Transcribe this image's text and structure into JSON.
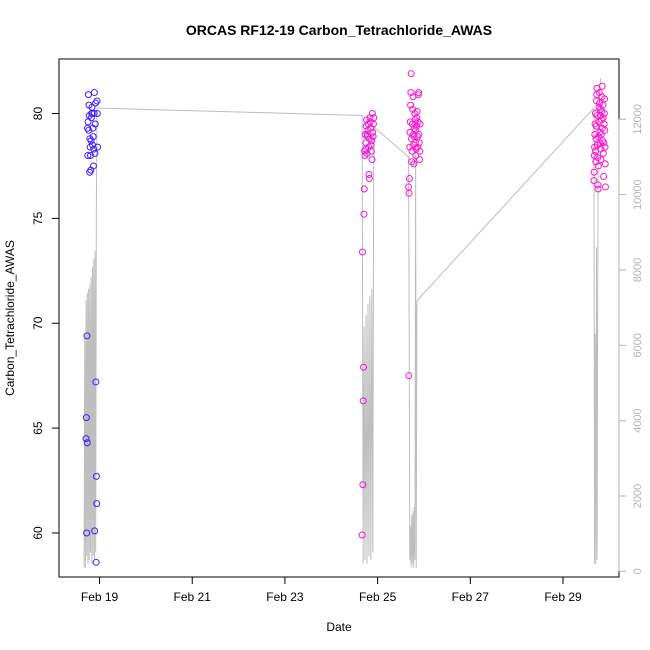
{
  "chart_data": {
    "type": "scatter",
    "title": "ORCAS RF12-19 Carbon_Tetrachloride_AWAS",
    "xlabel": "Date",
    "ylabel": "Carbon_Tetrachloride_AWAS",
    "x_ticks": [
      "Feb 19",
      "Feb 21",
      "Feb 23",
      "Feb 25",
      "Feb 27",
      "Feb 29"
    ],
    "xlim": [
      "2016-02-18T03:00",
      "2016-03-01T05:00"
    ],
    "ylim": [
      57.9,
      82.6
    ],
    "y_ticks": [
      60,
      65,
      70,
      75,
      80
    ],
    "y2lim": [
      -150,
      13600
    ],
    "y2_ticks": [
      0,
      2000,
      4000,
      6000,
      8000,
      10000,
      12000
    ],
    "grid": false,
    "colors": {
      "axis": "#000000",
      "secondary_axis": "#b3b3b3",
      "altitude_line": "#bebebe",
      "point_early": "#3d1eff",
      "point_late": "#ff14d2"
    },
    "series": [
      {
        "role": "points",
        "flights": [
          {
            "start": "2016-02-18T17:00",
            "end": "2016-02-18T23:00",
            "values": [
              64.5,
              65.5,
              60.0,
              69.4,
              64.3,
              79.3,
              78.0,
              79.6,
              80.9,
              79.2,
              80.4,
              79.9,
              77.2,
              78.8,
              78.4,
              78.0,
              77.3,
              78.7,
              79.8,
              80.0,
              80.3,
              80.0,
              78.5,
              79.3,
              78.9,
              77.5,
              78.3,
              80.0,
              81.0,
              60.1,
              78.1,
              79.5,
              80.5,
              67.2,
              58.6,
              62.7,
              61.4,
              80.6,
              80.0,
              78.4
            ]
          },
          {
            "start": "2016-02-24T16:00",
            "end": "2016-02-24T22:00",
            "values": [
              59.9,
              73.4,
              62.3,
              66.3,
              67.9,
              75.2,
              76.4,
              78.2,
              78.0,
              79.0,
              78.3,
              78.6,
              79.4,
              79.7,
              78.1,
              79.0,
              78.9,
              79.2,
              79.5,
              78.4,
              77.1,
              76.9,
              78.8,
              79.8,
              79.6,
              79.3,
              78.5,
              78.2,
              78.7,
              77.8,
              80.0,
              79.1,
              78.9,
              79.5,
              79.8
            ]
          },
          {
            "start": "2016-02-25T16:00",
            "end": "2016-02-25T22:00",
            "values": [
              76.5,
              67.5,
              76.2,
              76.9,
              78.4,
              79.1,
              79.6,
              80.4,
              81.0,
              81.9,
              78.8,
              77.7,
              78.2,
              79.5,
              80.2,
              80.8,
              79.0,
              78.5,
              77.6,
              78.9,
              79.3,
              80.0,
              79.7,
              79.2,
              78.6,
              78.0,
              78.3,
              79.4,
              79.8,
              80.1,
              78.4,
              78.9,
              79.6,
              80.9,
              81.0,
              79.0,
              78.6,
              77.8,
              78.2,
              79.5
            ]
          },
          {
            "start": "2016-02-29T16:00",
            "end": "2016-02-29T22:00",
            "values": [
              76.8,
              77.2,
              78.0,
              78.4,
              79.0,
              79.5,
              80.0,
              78.2,
              77.7,
              78.8,
              79.4,
              80.6,
              80.9,
              81.2,
              79.9,
              78.5,
              77.9,
              76.6,
              76.4,
              77.5,
              78.9,
              79.6,
              80.3,
              81.0,
              80.5,
              79.1,
              78.6,
              79.9,
              80.2,
              78.3,
              77.8,
              79.0,
              79.7,
              80.1,
              80.8,
              81.3,
              79.3,
              78.7,
              80.4,
              79.8,
              78.1,
              77.0,
              78.6,
              79.5,
              80.0,
              80.7,
              79.2,
              78.4,
              77.6,
              76.5
            ]
          }
        ]
      },
      {
        "role": "altitude_line",
        "axis": "right",
        "points": [
          [
            "2016-02-18T16:00",
            100
          ],
          [
            "2016-02-18T16:20",
            6300
          ],
          [
            "2016-02-18T16:40",
            100
          ],
          [
            "2016-02-18T17:00",
            7200
          ],
          [
            "2016-02-18T17:20",
            400
          ],
          [
            "2016-02-18T17:40",
            7400
          ],
          [
            "2016-02-18T18:00",
            200
          ],
          [
            "2016-02-18T18:20",
            7500
          ],
          [
            "2016-02-18T18:40",
            300
          ],
          [
            "2016-02-18T19:00",
            7600
          ],
          [
            "2016-02-18T19:20",
            500
          ],
          [
            "2016-02-18T19:40",
            7800
          ],
          [
            "2016-02-18T20:00",
            200
          ],
          [
            "2016-02-18T20:20",
            8100
          ],
          [
            "2016-02-18T20:40",
            400
          ],
          [
            "2016-02-18T21:00",
            8300
          ],
          [
            "2016-02-18T21:20",
            300
          ],
          [
            "2016-02-18T21:40",
            8500
          ],
          [
            "2016-02-18T22:00",
            500
          ],
          [
            "2016-02-18T22:20",
            9500
          ],
          [
            "2016-02-18T22:40",
            12300
          ],
          [
            "2016-02-24T16:00",
            12100
          ],
          [
            "2016-02-24T16:30",
            200
          ],
          [
            "2016-02-24T17:00",
            6500
          ],
          [
            "2016-02-24T17:30",
            300
          ],
          [
            "2016-02-24T18:00",
            6800
          ],
          [
            "2016-02-24T18:30",
            200
          ],
          [
            "2016-02-24T19:00",
            7100
          ],
          [
            "2016-02-24T19:30",
            400
          ],
          [
            "2016-02-24T20:00",
            7300
          ],
          [
            "2016-02-24T20:30",
            300
          ],
          [
            "2016-02-24T21:00",
            7500
          ],
          [
            "2016-02-24T21:30",
            500
          ],
          [
            "2016-02-24T22:00",
            11800
          ],
          [
            "2016-02-25T16:00",
            11000
          ],
          [
            "2016-02-25T16:20",
            6500
          ],
          [
            "2016-02-25T16:40",
            300
          ],
          [
            "2016-02-25T17:00",
            1200
          ],
          [
            "2016-02-25T17:20",
            100
          ],
          [
            "2016-02-25T17:40",
            1500
          ],
          [
            "2016-02-25T18:00",
            200
          ],
          [
            "2016-02-25T18:20",
            1600
          ],
          [
            "2016-02-25T18:40",
            100
          ],
          [
            "2016-02-25T19:00",
            1700
          ],
          [
            "2016-02-25T19:20",
            300
          ],
          [
            "2016-02-25T19:40",
            11300
          ],
          [
            "2016-02-25T20:00",
            100
          ],
          [
            "2016-02-25T20:20",
            7100
          ],
          [
            "2016-02-25T20:40",
            7200
          ],
          [
            "2016-02-29T16:00",
            12300
          ],
          [
            "2016-02-29T16:20",
            200
          ],
          [
            "2016-02-29T16:40",
            6300
          ],
          [
            "2016-02-29T17:00",
            200
          ],
          [
            "2016-02-29T17:20",
            8600
          ],
          [
            "2016-02-29T17:40",
            300
          ],
          [
            "2016-02-29T18:00",
            7500
          ],
          [
            "2016-02-29T18:20",
            12000
          ],
          [
            "2016-02-29T18:40",
            12600
          ],
          [
            "2016-02-29T19:00",
            12800
          ],
          [
            "2016-02-29T19:20",
            13000
          ],
          [
            "2016-02-29T19:40",
            13100
          ]
        ]
      }
    ]
  }
}
